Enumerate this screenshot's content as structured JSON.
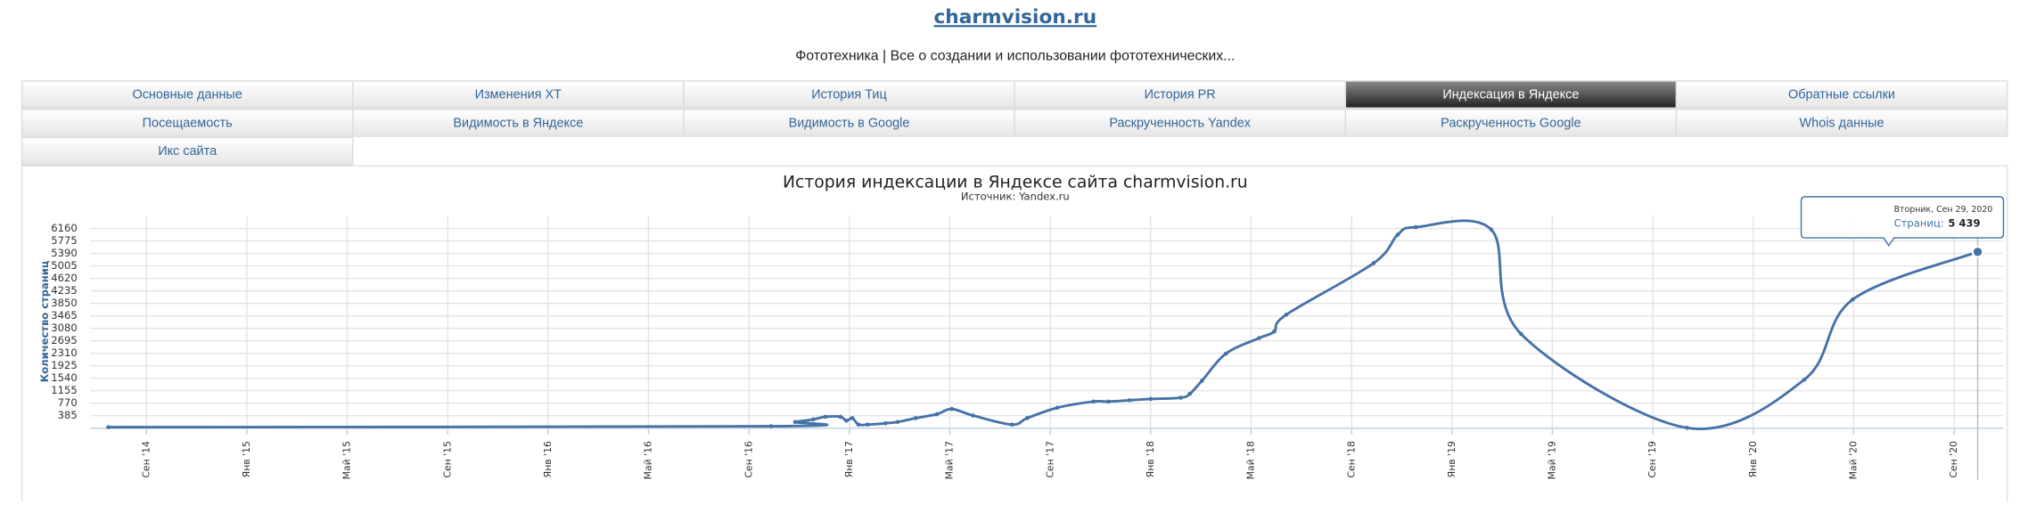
{
  "header": {
    "site": "charmvision.ru",
    "description": "Фототехника | Все о создании и использовании фототехнических..."
  },
  "tabs": [
    "Основные данные",
    "Изменения ХТ",
    "История Тиц",
    "История PR",
    "Индексация в Яндексе",
    "Обратные ссылки",
    "Посещаемость",
    "Видимость в Яндексе",
    "Видимость в Google",
    "Раскрученность Yandex",
    "Раскрученность Google",
    "Whois данные",
    "Икс сайта"
  ],
  "active_tab": 4,
  "chart_data": {
    "type": "line",
    "title": "История индексации в Яндексе сайта charmvision.ru",
    "subtitle": "Источник: Yandex.ru",
    "y_label": "Количество страниц",
    "color": "#4572a7",
    "grid": true,
    "xlim": [
      2014.48,
      2020.83
    ],
    "ylim": [
      0,
      6545
    ],
    "xticks": [
      {
        "value": 2014.667,
        "label": "Сен '14"
      },
      {
        "value": 2015.0,
        "label": "Янв '15"
      },
      {
        "value": 2015.333,
        "label": "Май '15"
      },
      {
        "value": 2015.667,
        "label": "Сен '15"
      },
      {
        "value": 2016.0,
        "label": "Янв '16"
      },
      {
        "value": 2016.333,
        "label": "Май '16"
      },
      {
        "value": 2016.667,
        "label": "Сен '16"
      },
      {
        "value": 2017.0,
        "label": "Янв '17"
      },
      {
        "value": 2017.333,
        "label": "Май '17"
      },
      {
        "value": 2017.667,
        "label": "Сен '17"
      },
      {
        "value": 2018.0,
        "label": "Янв '18"
      },
      {
        "value": 2018.333,
        "label": "Май '18"
      },
      {
        "value": 2018.667,
        "label": "Сен '18"
      },
      {
        "value": 2019.0,
        "label": "Янв '19"
      },
      {
        "value": 2019.333,
        "label": "Май '19"
      },
      {
        "value": 2019.667,
        "label": "Сен '19"
      },
      {
        "value": 2020.0,
        "label": "Янв '20"
      },
      {
        "value": 2020.333,
        "label": "Май '20"
      },
      {
        "value": 2020.667,
        "label": "Сен '20"
      }
    ],
    "yticks": [
      385,
      770,
      1155,
      1540,
      1925,
      2310,
      2695,
      3080,
      3465,
      3850,
      4235,
      4620,
      5005,
      5390,
      5775,
      6160
    ],
    "x": [
      2014.54,
      2016.74,
      2016.82,
      2016.88,
      2016.92,
      2016.97,
      2016.99,
      2017.01,
      2017.03,
      2017.06,
      2017.12,
      2017.16,
      2017.22,
      2017.29,
      2017.34,
      2017.41,
      2017.54,
      2017.59,
      2017.69,
      2017.81,
      2017.86,
      2017.93,
      2018.0,
      2018.1,
      2018.13,
      2018.17,
      2018.25,
      2018.36,
      2018.41,
      2018.45,
      2018.74,
      2018.82,
      2018.88,
      2019.13,
      2019.23,
      2019.78,
      2020.17,
      2020.33,
      2020.745
    ],
    "values": [
      30,
      60,
      190,
      270,
      350,
      350,
      230,
      310,
      110,
      110,
      150,
      190,
      310,
      430,
      590,
      390,
      110,
      310,
      630,
      820,
      820,
      860,
      900,
      940,
      1060,
      1460,
      2300,
      2780,
      2980,
      3500,
      5090,
      5970,
      6200,
      6130,
      2900,
      10,
      1500,
      3970,
      5439
    ],
    "tooltip": {
      "title": "Вторник, Сен 29, 2020",
      "text": "Страниц:",
      "value_label": "5 439"
    }
  }
}
